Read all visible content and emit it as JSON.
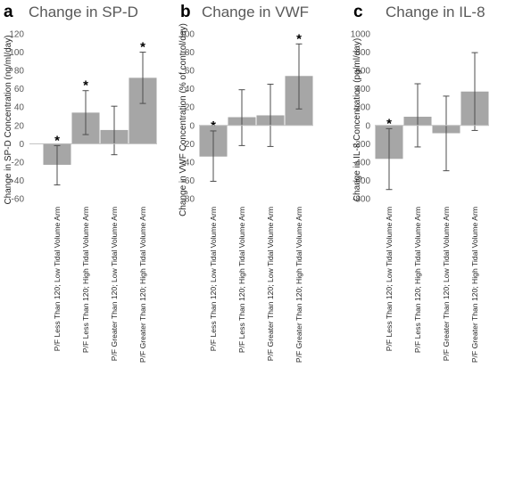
{
  "chart_data": [
    {
      "type": "bar",
      "panel": "a",
      "title": "Change in SP-D",
      "ylabel": "Change in SP-D Concentration (ng/ml/day)",
      "xlabel": "",
      "ylim": [
        -60,
        120
      ],
      "yticks": [
        -60,
        -40,
        -20,
        0,
        20,
        40,
        60,
        80,
        100,
        120
      ],
      "categories": [
        "P/F Less Than 120; Low Tidal Volume Arm",
        "P/F Less Than 120; High Tidal Volume Arm",
        "P/F Greater Than 120; Low Tidal Volume Arm",
        "P/F Greater Than 120; High Tidal Volume Arm"
      ],
      "values": [
        -23,
        34,
        15,
        72
      ],
      "error_low": [
        -45,
        10,
        -12,
        44
      ],
      "error_high": [
        -2,
        58,
        41,
        100
      ],
      "significant": [
        true,
        true,
        false,
        true
      ],
      "marker": "*",
      "grid": false,
      "bar_color": "#a6a6a6",
      "error_color": "#4d4d4d"
    },
    {
      "type": "bar",
      "panel": "b",
      "title": "Change in VWF",
      "ylabel": "Change in VWF Concentration (% of control/day)",
      "xlabel": "",
      "ylim": [
        -80,
        100
      ],
      "yticks": [
        -80,
        -60,
        -40,
        -20,
        0,
        20,
        40,
        60,
        80,
        100
      ],
      "categories": [
        "P/F Less Than 120; Low Tidal Volume Arm",
        "P/F Less Than 120; High Tidal Volume Arm",
        "P/F Greater Than 120; Low Tidal Volume Arm",
        "P/F Greater Than 120; High Tidal Volume Arm"
      ],
      "values": [
        -34,
        9,
        11,
        54
      ],
      "error_low": [
        -61,
        -22,
        -23,
        18
      ],
      "error_high": [
        -6,
        39,
        45,
        89
      ],
      "significant": [
        true,
        false,
        false,
        true
      ],
      "marker": "*",
      "grid": false,
      "bar_color": "#a6a6a6",
      "error_color": "#4d4d4d"
    },
    {
      "type": "bar",
      "panel": "c",
      "title": "Change in IL-8",
      "ylabel": "Change in IL-8 Concentration (pg/ml/day)",
      "xlabel": "",
      "ylim": [
        -800,
        1000
      ],
      "yticks": [
        -800,
        -600,
        -400,
        -200,
        0,
        200,
        400,
        600,
        800,
        1000
      ],
      "categories": [
        "P/F Less Than 120; Low Tidal Volume Arm",
        "P/F Less Than 120; High Tidal Volume Arm",
        "P/F Greater Than 120; Low Tidal Volume Arm",
        "P/F Greater Than 120; High Tidal Volume Arm"
      ],
      "values": [
        -365,
        95,
        -85,
        370
      ],
      "error_low": [
        -700,
        -235,
        -495,
        -55
      ],
      "error_high": [
        -35,
        455,
        320,
        795
      ],
      "significant": [
        true,
        false,
        false,
        false
      ],
      "marker": "*",
      "grid": false,
      "bar_color": "#a6a6a6",
      "error_color": "#4d4d4d"
    }
  ]
}
